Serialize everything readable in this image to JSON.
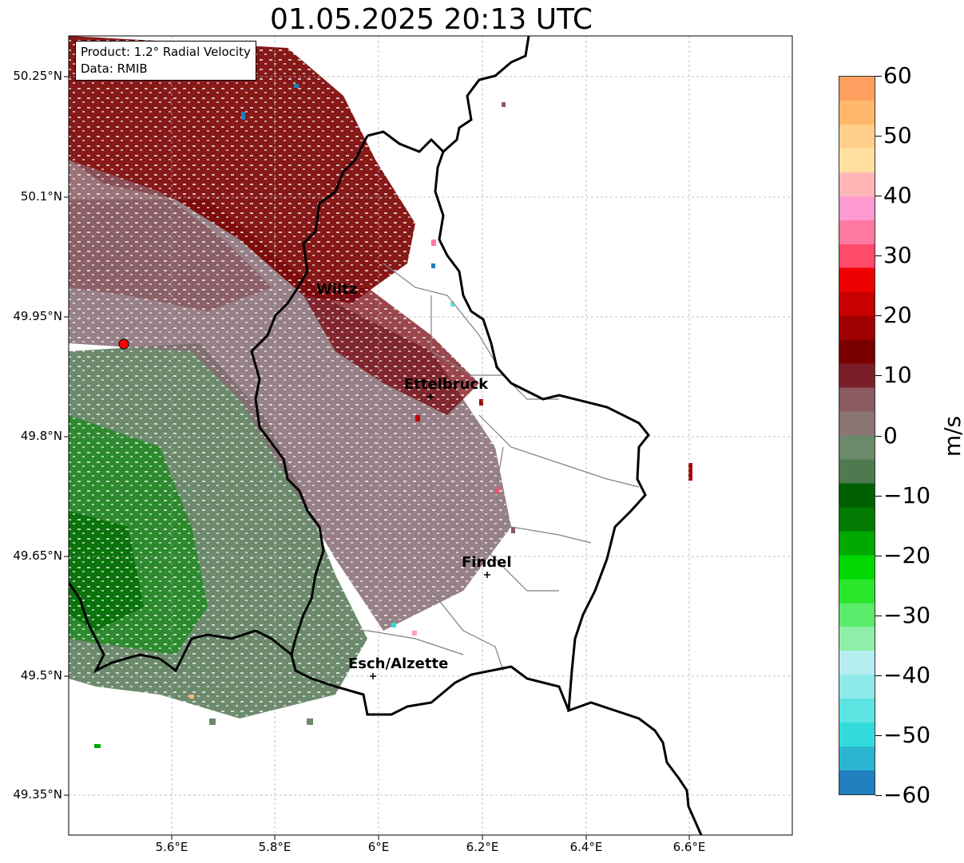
{
  "title": "01.05.2025 20:13 UTC",
  "info": {
    "product": "Product: 1.2° Radial Velocity",
    "data": "Data: RMIB"
  },
  "lat_labels": [
    "50.25°N",
    "50.1°N",
    "49.95°N",
    "49.8°N",
    "49.65°N",
    "49.5°N",
    "49.35°N"
  ],
  "lon_labels": [
    "5.6°E",
    "5.8°E",
    "6°E",
    "6.2°E",
    "6.4°E",
    "6.6°E"
  ],
  "cities": [
    {
      "name": "Wiltz"
    },
    {
      "name": "Ettelbruck"
    },
    {
      "name": "Findel"
    },
    {
      "name": "Esch/Alzette"
    }
  ],
  "colorbar": {
    "unit": "m/s",
    "min": -60,
    "max": 60,
    "ticks": [
      "60",
      "50",
      "40",
      "30",
      "20",
      "10",
      "0",
      "−10",
      "−20",
      "−30",
      "−40",
      "−50",
      "−60"
    ],
    "stops": [
      "#1f7fbf",
      "#2ab6d0",
      "#33dcdc",
      "#5ee3e3",
      "#8ee9e9",
      "#b6eef0",
      "#8ef0a8",
      "#5aeb6a",
      "#2ae62a",
      "#00d800",
      "#00a800",
      "#007a00",
      "#006000",
      "#4f7a4f",
      "#6b8a6b",
      "#8a7474",
      "#8a5a62",
      "#7a1f2a",
      "#7a0000",
      "#a00000",
      "#c80000",
      "#ee0000",
      "#ff4a6a",
      "#ff7aa0",
      "#ff9ad0",
      "#ffb6b6",
      "#ffe0a0",
      "#ffd08a",
      "#ffb86a",
      "#ffa060"
    ]
  },
  "radar_site": {
    "color": "#ff0000"
  }
}
